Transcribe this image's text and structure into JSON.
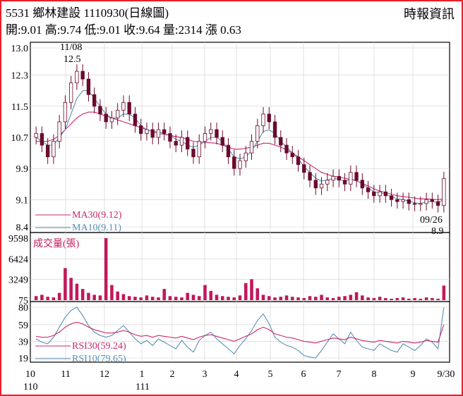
{
  "header": {
    "title": "5531 鄉林建設 1110930(日線圖)",
    "ohlc": "開:9.01 高:9.74 低:9.01 收:9.64 量:2314 漲 0.63",
    "source": "時報資訊"
  },
  "colors": {
    "frame": "#e8202a",
    "candle": "#6b0a2a",
    "ma30": "#c8286e",
    "ma10": "#5b8fb7",
    "volume": "#c2185b",
    "grid": "#cfcfcf"
  },
  "chart_data": [
    {
      "type": "line",
      "name": "price-panel",
      "yticks": [
        "13.0",
        "12.3",
        "11.5",
        "10.7",
        "9.9",
        "9.1",
        "8.4"
      ],
      "ylim": [
        8.4,
        13.0
      ],
      "annotations": {
        "high_date": "11/08",
        "high_value": "12.5",
        "low_date": "09/26",
        "low_value": "8.9"
      },
      "series": [
        {
          "name": "MA30(9.12)"
        },
        {
          "name": "MA10(9.11)"
        }
      ],
      "months": [
        "10",
        "11",
        "12",
        "1",
        "2",
        "3",
        "4",
        "5",
        "6",
        "7",
        "8",
        "9",
        "9/30"
      ],
      "close": [
        10.8,
        10.5,
        10.2,
        10.6,
        11.1,
        11.6,
        12.1,
        12.4,
        12.2,
        11.8,
        11.5,
        11.3,
        11.1,
        11.2,
        11.4,
        11.6,
        11.3,
        11.0,
        10.8,
        10.9,
        10.7,
        10.9,
        10.8,
        10.6,
        10.5,
        10.7,
        10.4,
        10.2,
        10.6,
        10.8,
        10.9,
        10.7,
        10.5,
        10.2,
        9.9,
        10.1,
        10.3,
        10.6,
        11.0,
        11.3,
        11.1,
        10.7,
        10.5,
        10.3,
        10.2,
        10.0,
        9.8,
        9.6,
        9.4,
        9.5,
        9.6,
        9.7,
        9.6,
        9.5,
        9.8,
        9.6,
        9.4,
        9.3,
        9.2,
        9.3,
        9.2,
        9.1,
        9.05,
        9.1,
        9.0,
        8.98,
        9.0,
        9.1,
        9.05,
        8.95,
        9.64
      ],
      "ma30": [
        10.6,
        10.6,
        10.6,
        10.65,
        10.75,
        10.9,
        11.05,
        11.2,
        11.3,
        11.35,
        11.35,
        11.3,
        11.25,
        11.2,
        11.15,
        11.1,
        11.05,
        11.0,
        10.95,
        10.9,
        10.85,
        10.8,
        10.78,
        10.75,
        10.72,
        10.7,
        10.65,
        10.6,
        10.58,
        10.57,
        10.56,
        10.55,
        10.5,
        10.45,
        10.4,
        10.4,
        10.42,
        10.45,
        10.5,
        10.55,
        10.55,
        10.5,
        10.45,
        10.38,
        10.3,
        10.2,
        10.1,
        10.0,
        9.9,
        9.8,
        9.75,
        9.7,
        9.68,
        9.65,
        9.62,
        9.58,
        9.52,
        9.45,
        9.38,
        9.32,
        9.28,
        9.24,
        9.2,
        9.18,
        9.16,
        9.14,
        9.12,
        9.12,
        9.11,
        9.1,
        9.12
      ],
      "ma10": [
        10.7,
        10.6,
        10.5,
        10.5,
        10.7,
        10.9,
        11.3,
        11.7,
        11.9,
        11.9,
        11.7,
        11.5,
        11.3,
        11.2,
        11.2,
        11.3,
        11.3,
        11.2,
        11.0,
        10.9,
        10.85,
        10.85,
        10.8,
        10.75,
        10.65,
        10.6,
        10.5,
        10.45,
        10.5,
        10.6,
        10.7,
        10.7,
        10.6,
        10.4,
        10.2,
        10.15,
        10.2,
        10.35,
        10.6,
        10.85,
        10.9,
        10.8,
        10.6,
        10.45,
        10.3,
        10.15,
        9.95,
        9.8,
        9.65,
        9.58,
        9.6,
        9.65,
        9.62,
        9.58,
        9.62,
        9.6,
        9.5,
        9.4,
        9.3,
        9.28,
        9.24,
        9.18,
        9.12,
        9.1,
        9.06,
        9.02,
        9.0,
        9.04,
        9.06,
        9.02,
        9.11
      ]
    },
    {
      "type": "bar",
      "name": "volume-panel",
      "label": "成交量(張)",
      "yticks": [
        "9598",
        "6424",
        "3249",
        "75"
      ],
      "ylim": [
        75,
        9598
      ],
      "values": [
        700,
        900,
        600,
        500,
        1200,
        5000,
        3500,
        2600,
        1800,
        1200,
        900,
        800,
        9598,
        2400,
        1400,
        1000,
        700,
        600,
        500,
        800,
        600,
        500,
        1800,
        700,
        600,
        500,
        1200,
        900,
        700,
        2400,
        1500,
        900,
        700,
        600,
        500,
        800,
        2700,
        3300,
        1900,
        900,
        700,
        500,
        600,
        800,
        600,
        500,
        400,
        700,
        600,
        900,
        500,
        400,
        600,
        700,
        900,
        1300,
        800,
        500,
        400,
        600,
        400,
        300,
        400,
        500,
        300,
        400,
        300,
        500,
        400,
        300,
        2314
      ]
    },
    {
      "type": "line",
      "name": "rsi-panel",
      "yticks": [
        "80",
        "59",
        "39",
        "19"
      ],
      "ylim": [
        19,
        80
      ],
      "series": [
        {
          "name": "RSI30(59.24)"
        },
        {
          "name": "RSI10(79.65)"
        }
      ],
      "rsi30": [
        45,
        44,
        44,
        46,
        50,
        56,
        60,
        62,
        60,
        56,
        53,
        51,
        49,
        49,
        50,
        52,
        50,
        47,
        45,
        46,
        44,
        46,
        45,
        44,
        43,
        45,
        43,
        41,
        44,
        46,
        47,
        45,
        43,
        41,
        39,
        42,
        45,
        48,
        53,
        56,
        53,
        48,
        46,
        44,
        43,
        41,
        39,
        38,
        37,
        39,
        41,
        43,
        42,
        41,
        44,
        42,
        40,
        39,
        38,
        40,
        39,
        38,
        37,
        39,
        38,
        37,
        38,
        40,
        39,
        38,
        59.24
      ],
      "rsi10": [
        42,
        38,
        36,
        44,
        56,
        68,
        76,
        80,
        70,
        58,
        50,
        46,
        44,
        46,
        52,
        58,
        50,
        42,
        36,
        40,
        34,
        42,
        38,
        34,
        30,
        40,
        32,
        26,
        40,
        46,
        50,
        42,
        36,
        30,
        24,
        34,
        42,
        52,
        64,
        72,
        60,
        44,
        38,
        34,
        32,
        28,
        22,
        20,
        19,
        28,
        38,
        48,
        42,
        36,
        50,
        40,
        32,
        30,
        28,
        36,
        32,
        28,
        26,
        36,
        32,
        28,
        34,
        42,
        38,
        30,
        79.65
      ]
    }
  ]
}
